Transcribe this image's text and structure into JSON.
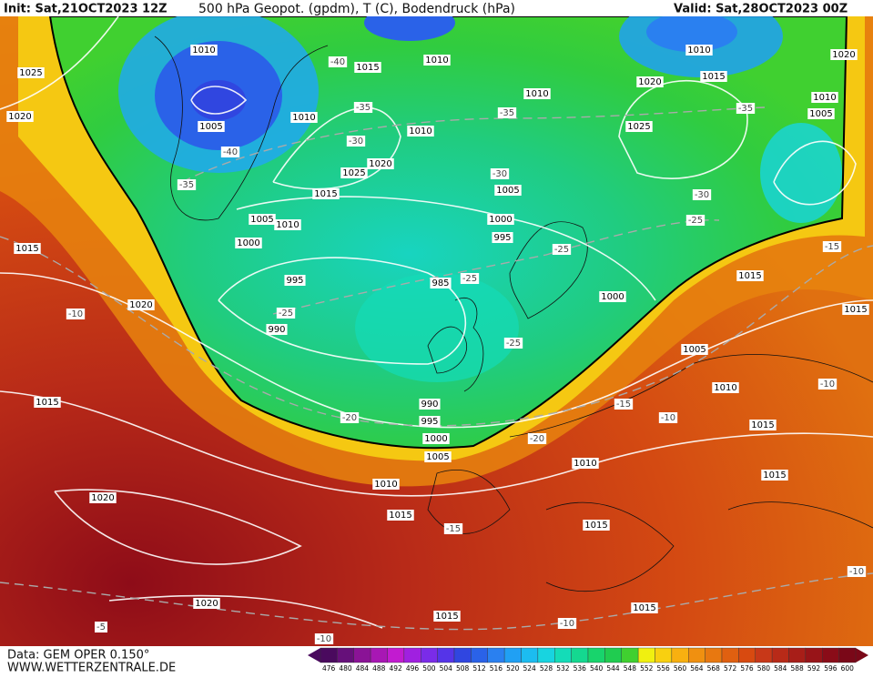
{
  "header": {
    "init": "Init: Sat,21OCT2023 12Z",
    "title": "500 hPa Geopot. (gpdm), T (C), Bodendruck (hPa)",
    "valid": "Valid: Sat,28OCT2023 00Z"
  },
  "map": {
    "isobar_labels": [
      "1010",
      "1015",
      "1010",
      "1025",
      "1020",
      "1005",
      "1010",
      "1010",
      "1010",
      "1010",
      "1015",
      "1020",
      "1020",
      "1010",
      "1005",
      "1025",
      "1020",
      "1025",
      "1015",
      "1005",
      "1005",
      "1010",
      "1000",
      "995",
      "1000",
      "1015",
      "995",
      "985",
      "1000",
      "1015",
      "1015",
      "1020",
      "990",
      "1005",
      "1010",
      "990",
      "995",
      "1015",
      "1015",
      "1000",
      "1005",
      "1010",
      "1010",
      "1015",
      "1020",
      "1015",
      "1015",
      "1020",
      "1015",
      "1015"
    ],
    "temperature_labels": [
      "-40",
      "-35",
      "-30",
      "-40",
      "-35",
      "-35",
      "-35",
      "-30",
      "-30",
      "-25",
      "-25",
      "-25",
      "-25",
      "-25",
      "-15",
      "-10",
      "-20",
      "-15",
      "-10",
      "-10",
      "-20",
      "-15",
      "-10",
      "-10",
      "-5",
      "-10"
    ]
  },
  "legend": {
    "levels": [
      476,
      480,
      484,
      488,
      492,
      496,
      500,
      504,
      508,
      512,
      516,
      520,
      524,
      528,
      532,
      536,
      540,
      544,
      548,
      552,
      556,
      560,
      564,
      568,
      572,
      576,
      580,
      584,
      588,
      592,
      596,
      600
    ],
    "colors": [
      "#4a0a5e",
      "#66107a",
      "#8a1396",
      "#a817b4",
      "#c21bd0",
      "#a020e0",
      "#7a2ce8",
      "#5534e8",
      "#3046e0",
      "#2a62e8",
      "#2a80f0",
      "#20a0f4",
      "#1cbcf0",
      "#18d4e0",
      "#14dcb8",
      "#14d890",
      "#18d46c",
      "#20cc50",
      "#40d030",
      "#f0f010",
      "#f8d010",
      "#f8b010",
      "#f09010",
      "#e87810",
      "#e06010",
      "#d84a10",
      "#c83818",
      "#b82a18",
      "#a81e18",
      "#981418",
      "#8a0c18",
      "#7a0818"
    ]
  },
  "footer": {
    "data": "Data: GEM OPER 0.150°",
    "site": "WWW.WETTERZENTRALE.DE"
  }
}
